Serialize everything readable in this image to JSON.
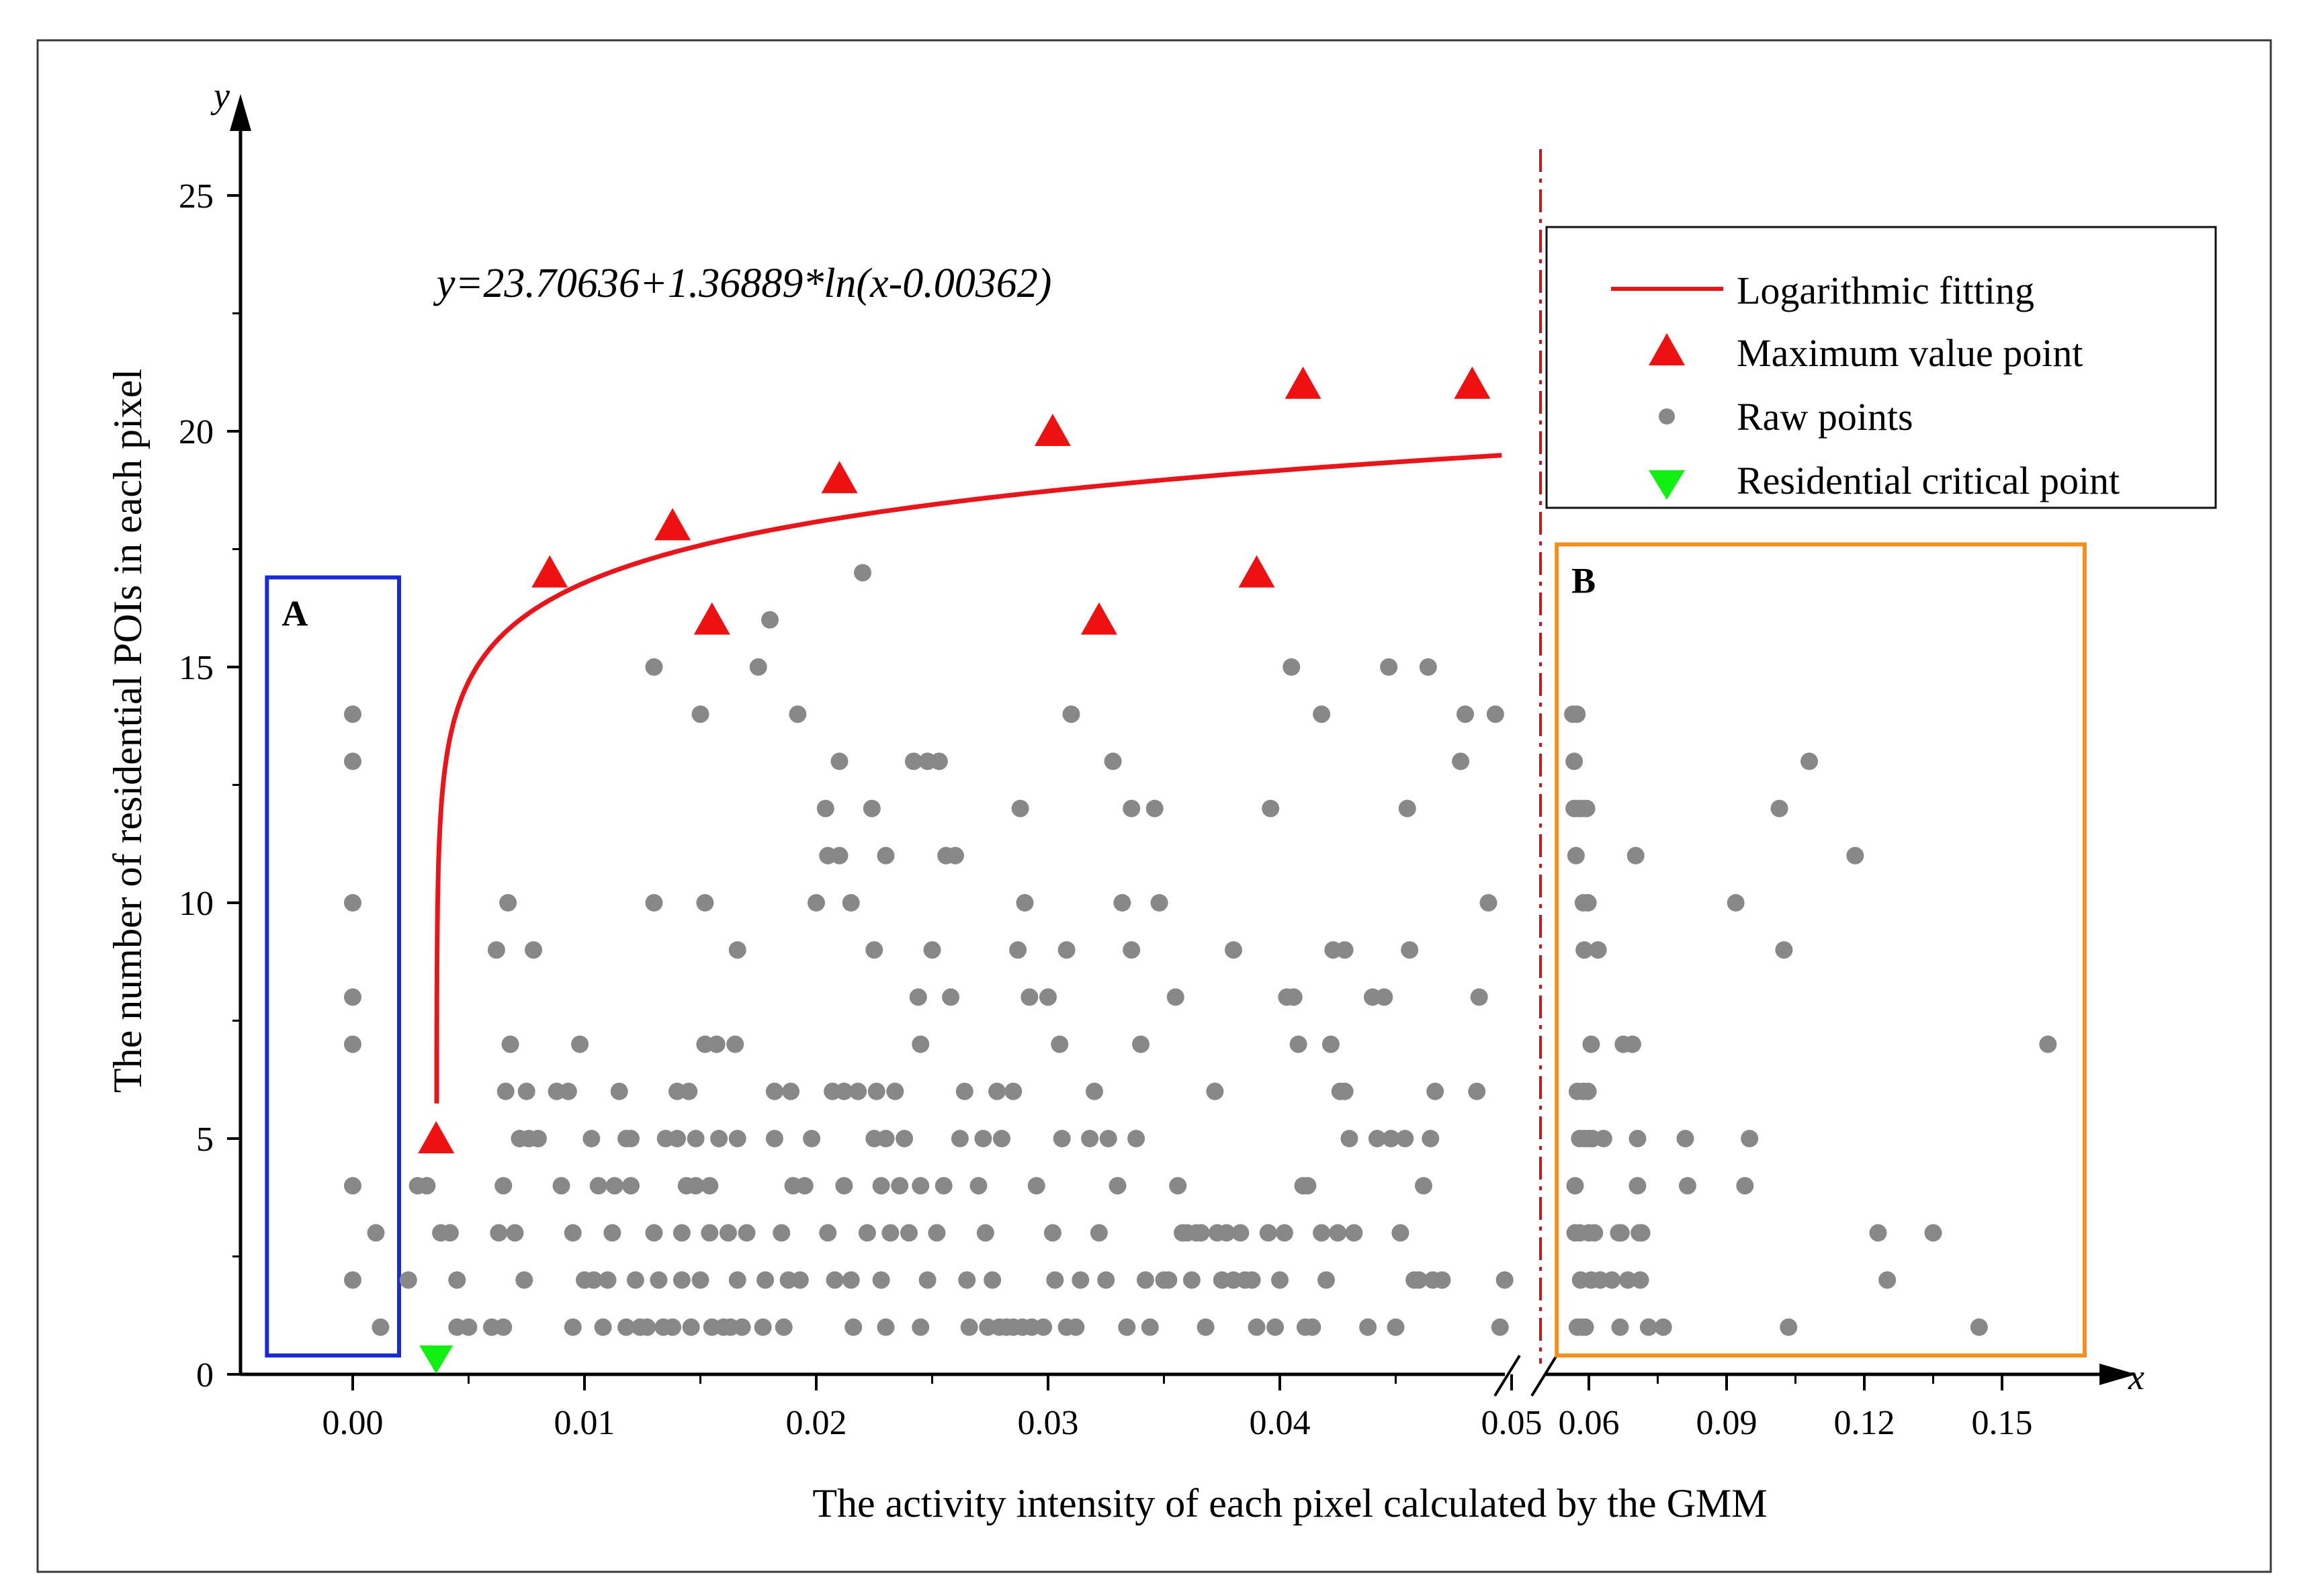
{
  "chart_data": {
    "type": "scatter",
    "formula": "y=23.70636+1.36889*ln(x-0.00362)",
    "xlabel": "The activity intensity of each pixel calculated by the GMM",
    "ylabel": "The number of residential POIs  in each pixel",
    "x_axis_symbol": "x",
    "y_axis_symbol": "y",
    "ylim": [
      0,
      25
    ],
    "y_ticks": [
      "0",
      "5",
      "10",
      "15",
      "20",
      "25"
    ],
    "x_segment_1": {
      "range": [
        -0.005,
        0.0525
      ],
      "ticks": [
        "0.00",
        "0.01",
        "0.02",
        "0.03",
        "0.04",
        "0.05"
      ],
      "tick_values": [
        0,
        0.01,
        0.02,
        0.03,
        0.04,
        0.05
      ]
    },
    "x_segment_2": {
      "range": [
        0.05,
        0.168
      ],
      "ticks": [
        "0.06",
        "0.09",
        "0.12",
        "0.15"
      ],
      "tick_values": [
        0.06,
        0.09,
        0.12,
        0.15
      ]
    },
    "legend": {
      "position": "top-right",
      "items": [
        {
          "label": "Logarithmic fitting",
          "symbol": "line",
          "color": "#e8161b"
        },
        {
          "label": "Maximum value point",
          "symbol": "triangle-up",
          "color": "#ee1111"
        },
        {
          "label": "Raw points",
          "symbol": "circle",
          "color": "#888888"
        },
        {
          "label": "Residential critical point",
          "symbol": "triangle-down",
          "color": "#11ee11"
        }
      ]
    },
    "regions": [
      {
        "label": "A",
        "x_range": [
          -0.0037,
          0.002
        ],
        "y_range": [
          0.4,
          16.9
        ],
        "color": "#1a2ad6"
      },
      {
        "label": "B",
        "x_range": [
          0.053,
          0.168
        ],
        "y_range": [
          0.4,
          17.6
        ],
        "color": "#f0901e"
      }
    ],
    "fit": {
      "a": 23.70636,
      "b": 1.36889,
      "c": 0.00362,
      "x_end": 0.0505
    },
    "critical_point": [
      0.0036,
      0.3
    ],
    "max_points": [
      [
        0.0036,
        5
      ],
      [
        0.0085,
        17
      ],
      [
        0.0138,
        18
      ],
      [
        0.0155,
        16
      ],
      [
        0.021,
        19
      ],
      [
        0.0302,
        20
      ],
      [
        0.0322,
        16
      ],
      [
        0.039,
        17
      ],
      [
        0.041,
        21
      ],
      [
        0.0483,
        21
      ]
    ],
    "raw_points": [
      [
        0.0,
        14
      ],
      [
        0.0,
        13
      ],
      [
        0.0,
        10
      ],
      [
        0.0,
        8
      ],
      [
        0.0,
        7
      ],
      [
        0.0,
        4
      ],
      [
        0.0,
        2
      ],
      [
        0.001,
        3
      ],
      [
        0.0012,
        1
      ],
      [
        0.0024,
        2
      ],
      [
        0.0028,
        4
      ],
      [
        0.0032,
        4
      ],
      [
        0.0038,
        3
      ],
      [
        0.0042,
        3
      ],
      [
        0.0045,
        2
      ],
      [
        0.0045,
        1
      ],
      [
        0.005,
        1
      ],
      [
        0.006,
        1
      ],
      [
        0.0062,
        9
      ],
      [
        0.0063,
        3
      ],
      [
        0.0065,
        1
      ],
      [
        0.0065,
        4
      ],
      [
        0.0066,
        6
      ],
      [
        0.0067,
        10
      ],
      [
        0.0068,
        7
      ],
      [
        0.007,
        3
      ],
      [
        0.0072,
        5
      ],
      [
        0.0074,
        2
      ],
      [
        0.0075,
        6
      ],
      [
        0.0076,
        5
      ],
      [
        0.0078,
        9
      ],
      [
        0.008,
        5
      ],
      [
        0.0088,
        6
      ],
      [
        0.009,
        4
      ],
      [
        0.0093,
        6
      ],
      [
        0.0095,
        3
      ],
      [
        0.0095,
        1
      ],
      [
        0.0098,
        7
      ],
      [
        0.01,
        2
      ],
      [
        0.0103,
        5
      ],
      [
        0.0104,
        2
      ],
      [
        0.0106,
        4
      ],
      [
        0.0108,
        1
      ],
      [
        0.011,
        2
      ],
      [
        0.0112,
        3
      ],
      [
        0.0113,
        4
      ],
      [
        0.0115,
        6
      ],
      [
        0.0118,
        5
      ],
      [
        0.0118,
        1
      ],
      [
        0.012,
        5
      ],
      [
        0.012,
        4
      ],
      [
        0.0122,
        2
      ],
      [
        0.0124,
        1
      ],
      [
        0.0127,
        1
      ],
      [
        0.013,
        15
      ],
      [
        0.013,
        10
      ],
      [
        0.013,
        3
      ],
      [
        0.0132,
        2
      ],
      [
        0.0134,
        1
      ],
      [
        0.0135,
        5
      ],
      [
        0.0138,
        1
      ],
      [
        0.014,
        6
      ],
      [
        0.014,
        5
      ],
      [
        0.0142,
        3
      ],
      [
        0.0142,
        2
      ],
      [
        0.0144,
        4
      ],
      [
        0.0145,
        6
      ],
      [
        0.0146,
        1
      ],
      [
        0.0148,
        4
      ],
      [
        0.0148,
        5
      ],
      [
        0.015,
        14
      ],
      [
        0.015,
        2
      ],
      [
        0.0152,
        10
      ],
      [
        0.0152,
        7
      ],
      [
        0.0154,
        3
      ],
      [
        0.0154,
        4
      ],
      [
        0.0155,
        1
      ],
      [
        0.0157,
        7
      ],
      [
        0.0158,
        5
      ],
      [
        0.016,
        1
      ],
      [
        0.0162,
        3
      ],
      [
        0.0163,
        1
      ],
      [
        0.0165,
        7
      ],
      [
        0.0166,
        9
      ],
      [
        0.0166,
        2
      ],
      [
        0.0166,
        5
      ],
      [
        0.0168,
        1
      ],
      [
        0.017,
        3
      ],
      [
        0.0175,
        15
      ],
      [
        0.0177,
        1
      ],
      [
        0.0178,
        2
      ],
      [
        0.018,
        16
      ],
      [
        0.0182,
        5
      ],
      [
        0.0182,
        6
      ],
      [
        0.0185,
        3
      ],
      [
        0.0186,
        1
      ],
      [
        0.0188,
        2
      ],
      [
        0.0189,
        6
      ],
      [
        0.019,
        4
      ],
      [
        0.0192,
        14
      ],
      [
        0.0193,
        2
      ],
      [
        0.0195,
        4
      ],
      [
        0.0198,
        5
      ],
      [
        0.02,
        10
      ],
      [
        0.0204,
        12
      ],
      [
        0.0205,
        11
      ],
      [
        0.0205,
        3
      ],
      [
        0.0207,
        6
      ],
      [
        0.0208,
        2
      ],
      [
        0.021,
        13
      ],
      [
        0.021,
        11
      ],
      [
        0.0212,
        6
      ],
      [
        0.0212,
        4
      ],
      [
        0.0215,
        10
      ],
      [
        0.0215,
        2
      ],
      [
        0.0216,
        1
      ],
      [
        0.0218,
        6
      ],
      [
        0.022,
        17
      ],
      [
        0.0222,
        3
      ],
      [
        0.0224,
        12
      ],
      [
        0.0225,
        9
      ],
      [
        0.0225,
        5
      ],
      [
        0.0226,
        6
      ],
      [
        0.0228,
        2
      ],
      [
        0.0228,
        4
      ],
      [
        0.023,
        11
      ],
      [
        0.023,
        5
      ],
      [
        0.023,
        1
      ],
      [
        0.0232,
        3
      ],
      [
        0.0234,
        6
      ],
      [
        0.0236,
        4
      ],
      [
        0.0238,
        5
      ],
      [
        0.024,
        3
      ],
      [
        0.0242,
        13
      ],
      [
        0.0244,
        8
      ],
      [
        0.0245,
        4
      ],
      [
        0.0245,
        7
      ],
      [
        0.0245,
        1
      ],
      [
        0.0248,
        13
      ],
      [
        0.0248,
        2
      ],
      [
        0.025,
        9
      ],
      [
        0.0252,
        3
      ],
      [
        0.0253,
        13
      ],
      [
        0.0255,
        4
      ],
      [
        0.0256,
        11
      ],
      [
        0.0258,
        8
      ],
      [
        0.026,
        11
      ],
      [
        0.0262,
        5
      ],
      [
        0.0264,
        6
      ],
      [
        0.0265,
        2
      ],
      [
        0.0266,
        1
      ],
      [
        0.027,
        4
      ],
      [
        0.0272,
        5
      ],
      [
        0.0273,
        3
      ],
      [
        0.0274,
        1
      ],
      [
        0.0276,
        2
      ],
      [
        0.0278,
        6
      ],
      [
        0.0279,
        1
      ],
      [
        0.028,
        5
      ],
      [
        0.0282,
        1
      ],
      [
        0.0285,
        6
      ],
      [
        0.0285,
        1
      ],
      [
        0.0287,
        9
      ],
      [
        0.0288,
        12
      ],
      [
        0.0289,
        1
      ],
      [
        0.029,
        10
      ],
      [
        0.0292,
        8
      ],
      [
        0.0293,
        1
      ],
      [
        0.0295,
        4
      ],
      [
        0.0298,
        1
      ],
      [
        0.03,
        8
      ],
      [
        0.0302,
        3
      ],
      [
        0.0303,
        2
      ],
      [
        0.0305,
        7
      ],
      [
        0.0306,
        5
      ],
      [
        0.0308,
        9
      ],
      [
        0.0308,
        1
      ],
      [
        0.031,
        14
      ],
      [
        0.0312,
        1
      ],
      [
        0.0314,
        2
      ],
      [
        0.0318,
        5
      ],
      [
        0.032,
        6
      ],
      [
        0.0322,
        3
      ],
      [
        0.0325,
        2
      ],
      [
        0.0326,
        5
      ],
      [
        0.0328,
        13
      ],
      [
        0.033,
        4
      ],
      [
        0.0332,
        10
      ],
      [
        0.0334,
        1
      ],
      [
        0.0336,
        12
      ],
      [
        0.0336,
        9
      ],
      [
        0.0338,
        5
      ],
      [
        0.034,
        7
      ],
      [
        0.0342,
        2
      ],
      [
        0.0344,
        1
      ],
      [
        0.0346,
        12
      ],
      [
        0.0348,
        10
      ],
      [
        0.035,
        2
      ],
      [
        0.0352,
        2
      ],
      [
        0.0355,
        8
      ],
      [
        0.0356,
        4
      ],
      [
        0.0358,
        3
      ],
      [
        0.036,
        3
      ],
      [
        0.0362,
        2
      ],
      [
        0.0364,
        3
      ],
      [
        0.0366,
        3
      ],
      [
        0.0368,
        1
      ],
      [
        0.0372,
        6
      ],
      [
        0.0373,
        3
      ],
      [
        0.0375,
        2
      ],
      [
        0.0377,
        3
      ],
      [
        0.038,
        9
      ],
      [
        0.038,
        2
      ],
      [
        0.0383,
        3
      ],
      [
        0.0385,
        2
      ],
      [
        0.0388,
        2
      ],
      [
        0.039,
        1
      ],
      [
        0.0395,
        3
      ],
      [
        0.0396,
        12
      ],
      [
        0.0398,
        1
      ],
      [
        0.04,
        2
      ],
      [
        0.0402,
        3
      ],
      [
        0.0403,
        8
      ],
      [
        0.0405,
        15
      ],
      [
        0.0406,
        8
      ],
      [
        0.0408,
        7
      ],
      [
        0.041,
        4
      ],
      [
        0.0411,
        1
      ],
      [
        0.0412,
        4
      ],
      [
        0.0414,
        1
      ],
      [
        0.0418,
        14
      ],
      [
        0.0418,
        3
      ],
      [
        0.042,
        2
      ],
      [
        0.0422,
        7
      ],
      [
        0.0423,
        9
      ],
      [
        0.0425,
        3
      ],
      [
        0.0426,
        6
      ],
      [
        0.0428,
        9
      ],
      [
        0.0428,
        6
      ],
      [
        0.043,
        5
      ],
      [
        0.0432,
        3
      ],
      [
        0.0438,
        1
      ],
      [
        0.044,
        8
      ],
      [
        0.0442,
        5
      ],
      [
        0.0445,
        8
      ],
      [
        0.0447,
        15
      ],
      [
        0.0448,
        5
      ],
      [
        0.045,
        1
      ],
      [
        0.0452,
        3
      ],
      [
        0.0454,
        5
      ],
      [
        0.0455,
        12
      ],
      [
        0.0456,
        9
      ],
      [
        0.0458,
        2
      ],
      [
        0.046,
        2
      ],
      [
        0.0462,
        4
      ],
      [
        0.0464,
        15
      ],
      [
        0.0465,
        5
      ],
      [
        0.0466,
        2
      ],
      [
        0.0467,
        6
      ],
      [
        0.047,
        2
      ],
      [
        0.0478,
        13
      ],
      [
        0.048,
        14
      ],
      [
        0.0485,
        6
      ],
      [
        0.0486,
        8
      ],
      [
        0.049,
        10
      ],
      [
        0.0493,
        14
      ],
      [
        0.0495,
        1
      ],
      [
        0.0497,
        2
      ],
      [
        0.0565,
        14
      ],
      [
        0.0568,
        13
      ],
      [
        0.0568,
        12
      ],
      [
        0.057,
        3
      ],
      [
        0.057,
        4
      ],
      [
        0.0572,
        11
      ],
      [
        0.0574,
        14
      ],
      [
        0.0575,
        6
      ],
      [
        0.0575,
        1
      ],
      [
        0.0578,
        12
      ],
      [
        0.058,
        5
      ],
      [
        0.058,
        3
      ],
      [
        0.0582,
        2
      ],
      [
        0.0585,
        12
      ],
      [
        0.0585,
        1
      ],
      [
        0.0588,
        10
      ],
      [
        0.0588,
        6
      ],
      [
        0.059,
        9
      ],
      [
        0.059,
        5
      ],
      [
        0.0592,
        1
      ],
      [
        0.0595,
        12
      ],
      [
        0.0598,
        10
      ],
      [
        0.0598,
        6
      ],
      [
        0.06,
        5
      ],
      [
        0.06,
        3
      ],
      [
        0.0605,
        7
      ],
      [
        0.0605,
        2
      ],
      [
        0.0608,
        5
      ],
      [
        0.0612,
        3
      ],
      [
        0.062,
        9
      ],
      [
        0.0625,
        2
      ],
      [
        0.0632,
        5
      ],
      [
        0.065,
        2
      ],
      [
        0.0665,
        3
      ],
      [
        0.0668,
        1
      ],
      [
        0.067,
        3
      ],
      [
        0.0675,
        7
      ],
      [
        0.0685,
        2
      ],
      [
        0.0695,
        7
      ],
      [
        0.0702,
        11
      ],
      [
        0.0706,
        5
      ],
      [
        0.0706,
        4
      ],
      [
        0.071,
        3
      ],
      [
        0.0712,
        2
      ],
      [
        0.0715,
        3
      ],
      [
        0.073,
        1
      ],
      [
        0.0762,
        1
      ],
      [
        0.081,
        5
      ],
      [
        0.0815,
        4
      ],
      [
        0.092,
        10
      ],
      [
        0.094,
        4
      ],
      [
        0.095,
        5
      ],
      [
        0.1015,
        12
      ],
      [
        0.1025,
        9
      ],
      [
        0.1035,
        1
      ],
      [
        0.108,
        13
      ],
      [
        0.118,
        11
      ],
      [
        0.123,
        3
      ],
      [
        0.125,
        2
      ],
      [
        0.135,
        3
      ],
      [
        0.145,
        1
      ],
      [
        0.16,
        7
      ]
    ]
  }
}
